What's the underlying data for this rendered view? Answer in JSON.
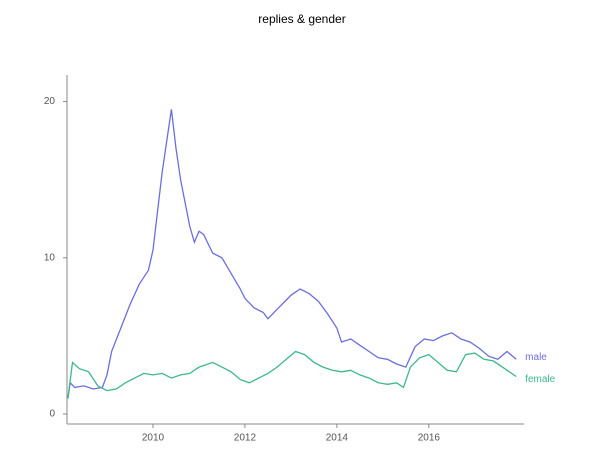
{
  "chart_data": {
    "type": "line",
    "title": "replies & gender",
    "xlim": [
      2008.13,
      2018.07
    ],
    "xticks": [
      2010,
      2012,
      2014,
      2016
    ],
    "ylim": [
      -0.64,
      21.7
    ],
    "yticks": [
      0,
      10,
      20
    ],
    "series": [
      {
        "name": "male",
        "color": "#6b6ee0",
        "x": [
          2008.15,
          2008.2,
          2008.3,
          2008.5,
          2008.7,
          2008.9,
          2009.0,
          2009.1,
          2009.3,
          2009.5,
          2009.7,
          2009.9,
          2010.0,
          2010.1,
          2010.2,
          2010.3,
          2010.4,
          2010.5,
          2010.6,
          2010.7,
          2010.8,
          2010.9,
          2011.0,
          2011.1,
          2011.3,
          2011.5,
          2011.7,
          2011.9,
          2012.0,
          2012.2,
          2012.4,
          2012.5,
          2012.7,
          2012.9,
          2013.0,
          2013.2,
          2013.4,
          2013.6,
          2013.8,
          2014.0,
          2014.1,
          2014.3,
          2014.5,
          2014.7,
          2014.9,
          2015.1,
          2015.3,
          2015.5,
          2015.7,
          2015.9,
          2016.1,
          2016.3,
          2016.5,
          2016.7,
          2016.9,
          2017.1,
          2017.3,
          2017.5,
          2017.7,
          2017.9
        ],
        "values": [
          1.0,
          2.0,
          1.7,
          1.8,
          1.6,
          1.7,
          2.5,
          4.0,
          5.5,
          7.0,
          8.3,
          9.2,
          10.5,
          13,
          15.5,
          17.5,
          19.5,
          17,
          15,
          13.5,
          12,
          11,
          11.7,
          11.5,
          10.3,
          10,
          9,
          8,
          7.4,
          6.8,
          6.5,
          6.1,
          6.7,
          7.3,
          7.6,
          8.0,
          7.7,
          7.2,
          6.4,
          5.5,
          4.6,
          4.8,
          4.4,
          4.0,
          3.6,
          3.5,
          3.2,
          3.0,
          4.3,
          4.8,
          4.7,
          5.0,
          5.2,
          4.8,
          4.6,
          4.2,
          3.7,
          3.5,
          4.0,
          3.5
        ]
      },
      {
        "name": "female",
        "color": "#3cb88a",
        "x": [
          2008.15,
          2008.25,
          2008.4,
          2008.6,
          2008.8,
          2009.0,
          2009.2,
          2009.4,
          2009.6,
          2009.8,
          2010.0,
          2010.2,
          2010.4,
          2010.6,
          2010.8,
          2011.0,
          2011.3,
          2011.5,
          2011.7,
          2011.9,
          2012.1,
          2012.3,
          2012.5,
          2012.7,
          2012.9,
          2013.1,
          2013.3,
          2013.5,
          2013.7,
          2013.9,
          2014.1,
          2014.3,
          2014.5,
          2014.7,
          2014.9,
          2015.1,
          2015.3,
          2015.45,
          2015.6,
          2015.8,
          2016.0,
          2016.2,
          2016.4,
          2016.6,
          2016.8,
          2017.0,
          2017.2,
          2017.4,
          2017.6,
          2017.9
        ],
        "values": [
          1.0,
          3.3,
          2.9,
          2.7,
          1.8,
          1.5,
          1.6,
          2.0,
          2.3,
          2.6,
          2.5,
          2.6,
          2.3,
          2.5,
          2.6,
          3.0,
          3.3,
          3.0,
          2.7,
          2.2,
          2.0,
          2.3,
          2.6,
          3.0,
          3.5,
          4.0,
          3.8,
          3.3,
          3.0,
          2.8,
          2.7,
          2.8,
          2.5,
          2.3,
          2.0,
          1.9,
          2.0,
          1.7,
          3.0,
          3.6,
          3.8,
          3.3,
          2.8,
          2.7,
          3.8,
          3.9,
          3.5,
          3.4,
          3.0,
          2.4
        ]
      }
    ]
  }
}
